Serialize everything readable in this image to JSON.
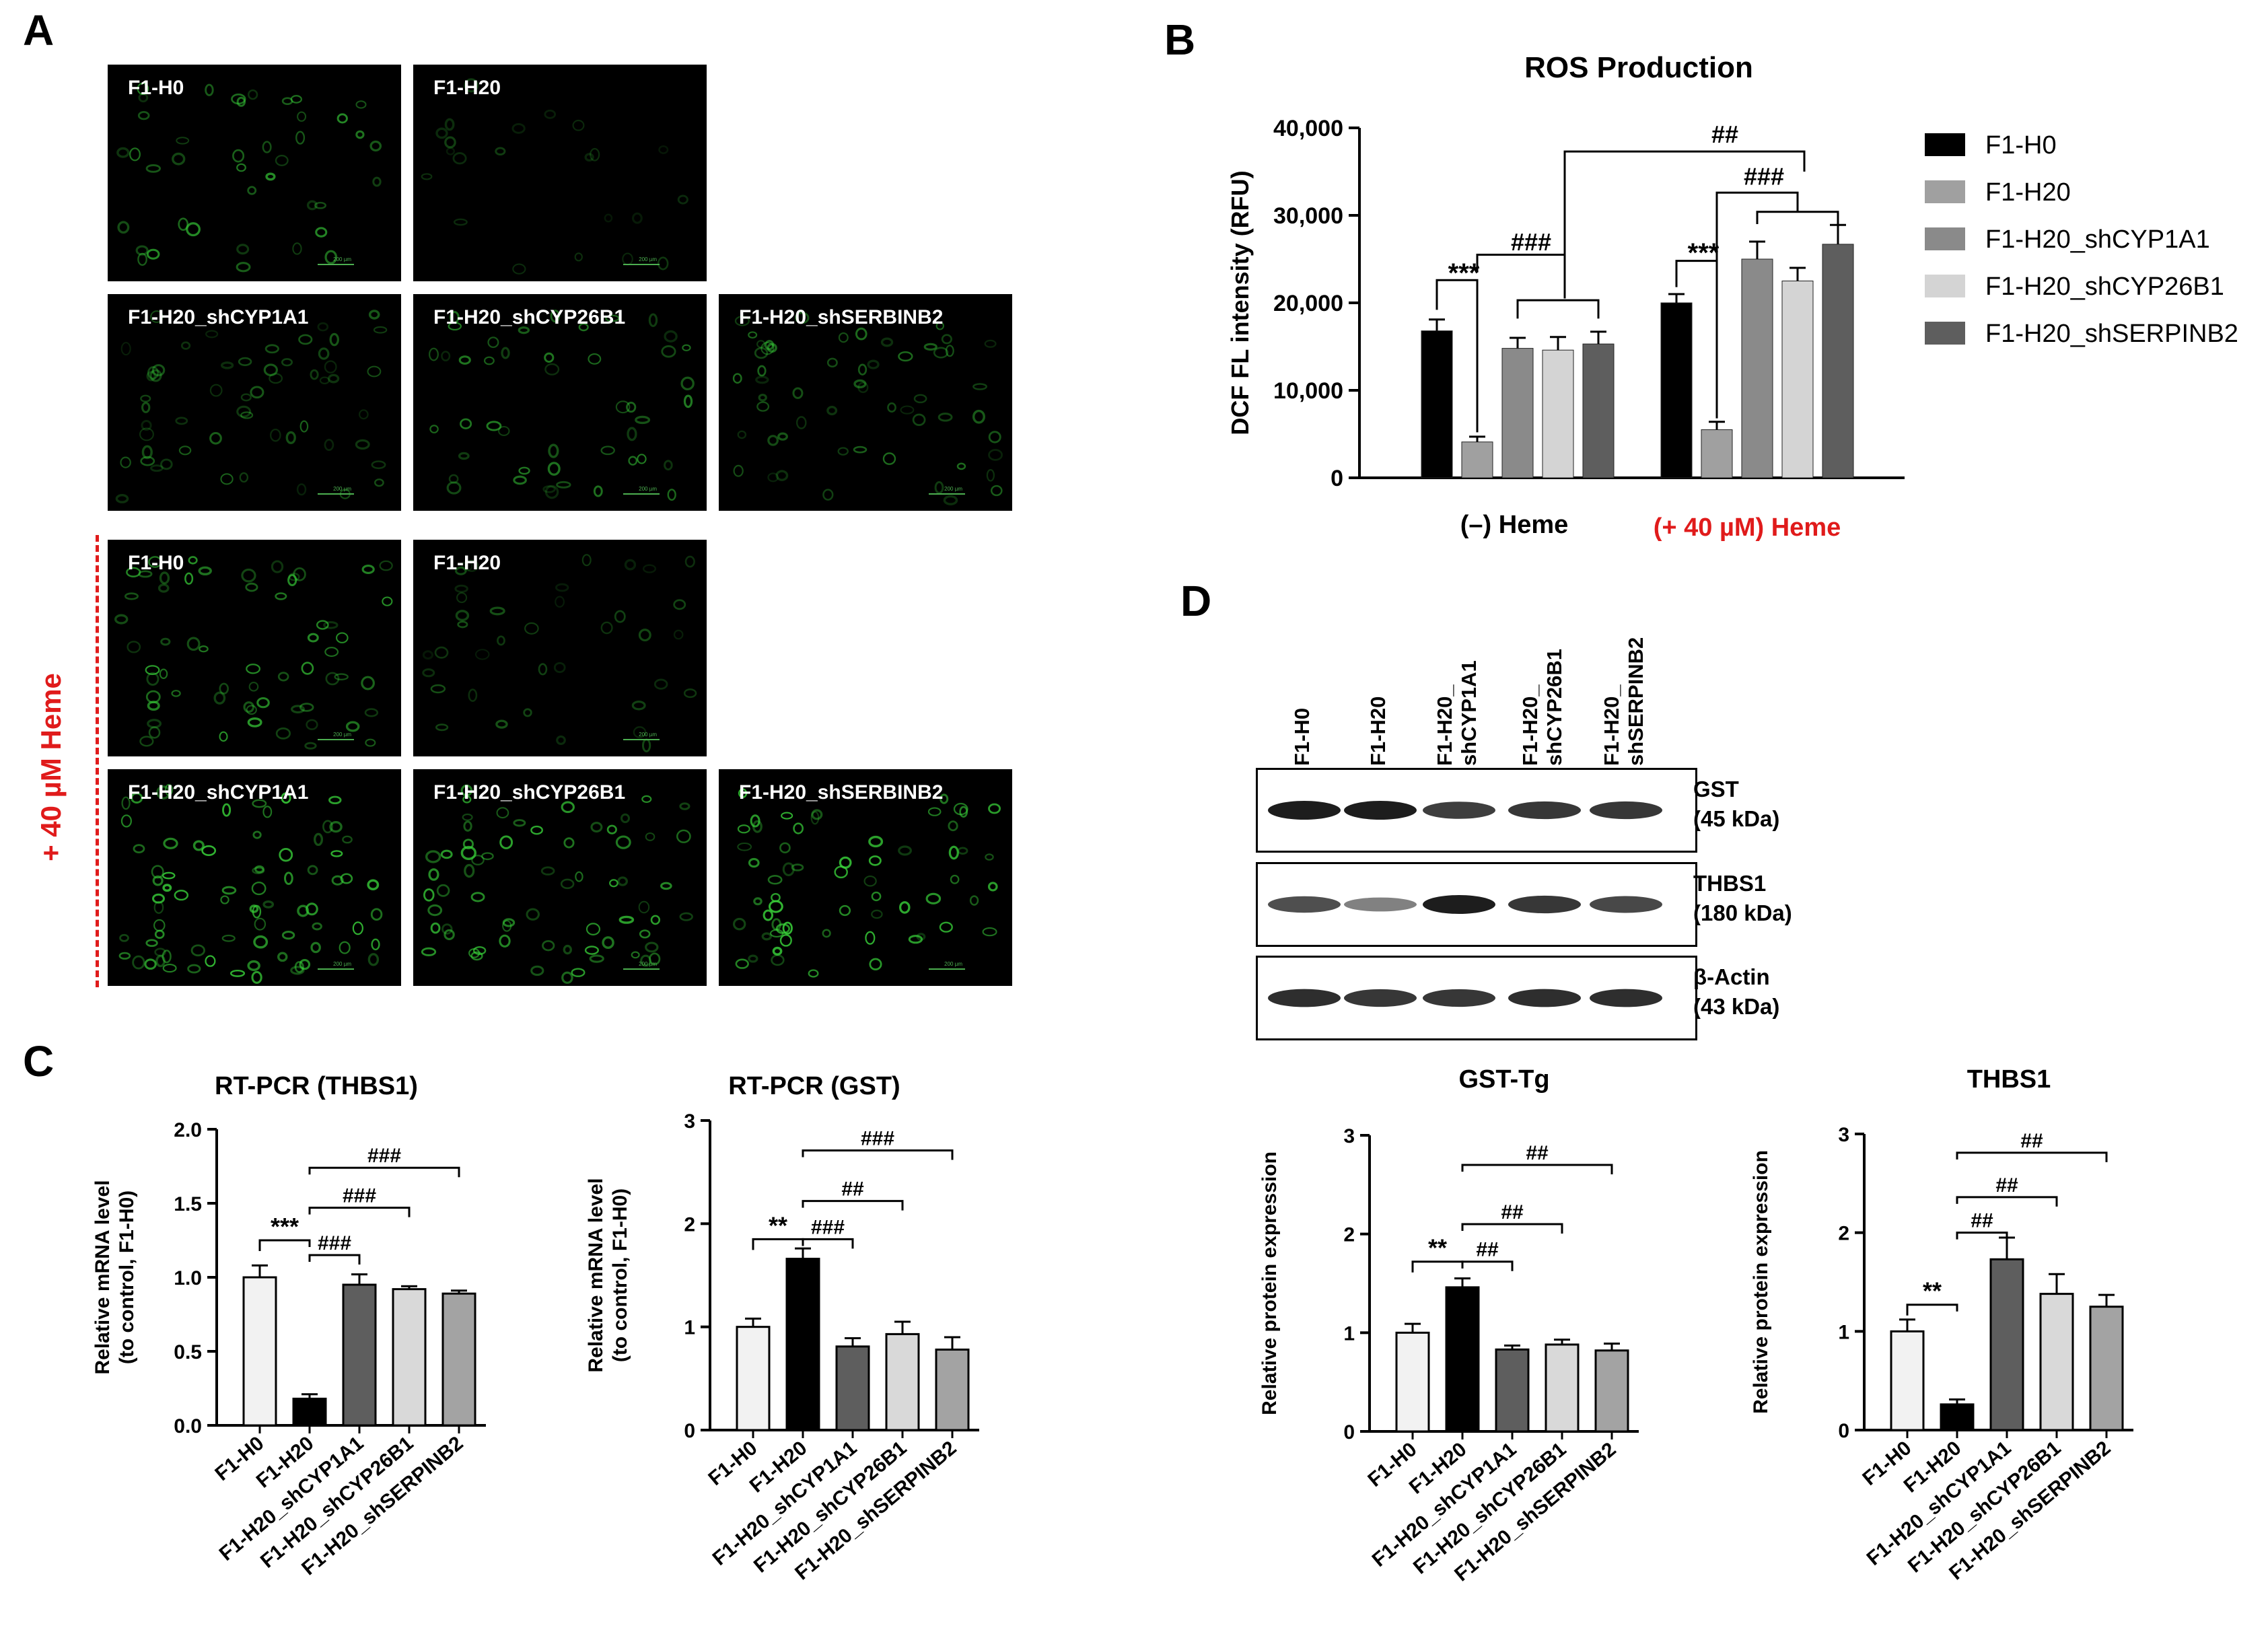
{
  "panel_letters": {
    "a": "A",
    "b": "B",
    "c": "C",
    "d": "D"
  },
  "panel_a": {
    "heme_label": "+ 40 µM Heme",
    "scale_text": "200 µm",
    "top_row1": [
      "F1-H0",
      "F1-H20"
    ],
    "top_row2": [
      "F1-H20_shCYP1A1",
      "F1-H20_shCYP26B1",
      "F1-H20_shSERBINB2"
    ],
    "bottom_row1": [
      "F1-H0",
      "F1-H20"
    ],
    "bottom_row2": [
      "F1-H20_shCYP1A1",
      "F1-H20_shCYP26B1",
      "F1-H20_shSERBINB2"
    ],
    "colors": {
      "background": "#000000",
      "cell": "#39d43a",
      "heme": "#e01b1b"
    }
  },
  "panel_b": {
    "legend": [
      "F1-H0",
      "F1-H20",
      "F1-H20_shCYP1A1",
      "F1-H20_shCYP26B1",
      "F1-H20_shSERPINB2"
    ],
    "group_label_minus": "(–) Heme",
    "group_label_plus": "(+ 40 µM) Heme",
    "sig_stars": "***",
    "sig_hash3": "###",
    "sig_hash2": "##",
    "colors": [
      "#000000",
      "#a0a0a0",
      "#8a8a8a",
      "#d4d4d4",
      "#5e5e5e"
    ]
  },
  "panel_c": {
    "sig_thbs1": {
      "stars": "***",
      "h1": "###",
      "h2": "###",
      "h3": "###"
    },
    "sig_gst": {
      "stars": "**",
      "h1": "###",
      "h2": "##",
      "h3": "###"
    }
  },
  "panel_d": {
    "lanes": [
      {
        "line1": "F1-H0",
        "line2": ""
      },
      {
        "line1": "F1-H20",
        "line2": ""
      },
      {
        "line1": "F1-H20_",
        "line2": "shCYP1A1"
      },
      {
        "line1": "F1-H20_",
        "line2": "shCYP26B1"
      },
      {
        "line1": "F1-H20_",
        "line2": "shSERPINB2"
      }
    ],
    "blots": [
      {
        "name": "GST",
        "kda": "(45 kDa)",
        "intensity": [
          1.0,
          1.0,
          0.8,
          0.85,
          0.85
        ]
      },
      {
        "name": "THBS1",
        "kda": "(180 kDa)",
        "intensity": [
          0.7,
          0.4,
          1.0,
          0.85,
          0.75
        ]
      },
      {
        "name": "β-Actin",
        "kda": "(43 kDa)",
        "intensity": [
          0.9,
          0.85,
          0.85,
          0.9,
          0.9
        ]
      }
    ],
    "sig_gst": {
      "stars": "**",
      "h1": "##",
      "h2": "##",
      "h3": "##"
    },
    "sig_thbs1": {
      "stars": "**",
      "h1": "##",
      "h2": "##",
      "h3": "##"
    }
  },
  "chart_data": [
    {
      "id": "ros",
      "type": "bar",
      "title": "ROS Production",
      "ylabel": "DCF FL intensity (RFU)",
      "xlabel": "",
      "ylim": [
        0,
        40000
      ],
      "yticks": [
        0,
        10000,
        20000,
        30000,
        40000
      ],
      "ytick_labels": [
        "0",
        "10,000",
        "20,000",
        "30,000",
        "40,000"
      ],
      "categories": [
        "(–) Heme",
        "(+ 40 µM) Heme"
      ],
      "series": [
        {
          "name": "F1-H0",
          "values": [
            16800,
            20000
          ],
          "errors": [
            1300,
            1000
          ]
        },
        {
          "name": "F1-H20",
          "values": [
            4100,
            5500
          ],
          "errors": [
            600,
            900
          ]
        },
        {
          "name": "F1-H20_shCYP1A1",
          "values": [
            14800,
            25000
          ],
          "errors": [
            1200,
            2000
          ]
        },
        {
          "name": "F1-H20_shCYP26B1",
          "values": [
            14600,
            22500
          ],
          "errors": [
            1500,
            1500
          ]
        },
        {
          "name": "F1-H20_shSERPINB2",
          "values": [
            15300,
            26700
          ],
          "errors": [
            1400,
            2200
          ]
        }
      ]
    },
    {
      "id": "rtpcr_thbs1",
      "type": "bar",
      "title": "RT-PCR (THBS1)",
      "ylabel": "Relative mRNA level",
      "ylabel2": "(to control, F1-H0)",
      "xlabel": "",
      "ylim": [
        0,
        2.0
      ],
      "yticks": [
        0,
        0.5,
        1.0,
        1.5,
        2.0
      ],
      "ytick_labels": [
        "0.0",
        "0.5",
        "1.0",
        "1.5",
        "2.0"
      ],
      "categories": [
        "F1-H0",
        "F1-H20",
        "F1-H20_shCYP1A1",
        "F1-H20_shCYP26B1",
        "F1-H20_shSERPINB2"
      ],
      "values": [
        1.0,
        0.18,
        0.95,
        0.92,
        0.89
      ],
      "errors": [
        0.08,
        0.03,
        0.07,
        0.02,
        0.02
      ],
      "colors": [
        "#f2f2f2",
        "#000000",
        "#5e5e5e",
        "#d9d9d9",
        "#a3a3a3"
      ]
    },
    {
      "id": "rtpcr_gst",
      "type": "bar",
      "title": "RT-PCR (GST)",
      "ylabel": "Relative mRNA level",
      "ylabel2": "(to control, F1-H0)",
      "xlabel": "",
      "ylim": [
        0,
        3
      ],
      "yticks": [
        0,
        1,
        2,
        3
      ],
      "ytick_labels": [
        "0",
        "1",
        "2",
        "3"
      ],
      "categories": [
        "F1-H0",
        "F1-H20",
        "F1-H20_shCYP1A1",
        "F1-H20_shCYP26B1",
        "F1-H20_shSERPINB2"
      ],
      "values": [
        1.0,
        1.66,
        0.81,
        0.93,
        0.78
      ],
      "errors": [
        0.08,
        0.1,
        0.08,
        0.12,
        0.12
      ],
      "colors": [
        "#f2f2f2",
        "#000000",
        "#5e5e5e",
        "#d9d9d9",
        "#a3a3a3"
      ]
    },
    {
      "id": "gst_tg",
      "type": "bar",
      "title": "GST-Tg",
      "ylabel": "Relative protein expression",
      "xlabel": "",
      "ylim": [
        0,
        3
      ],
      "yticks": [
        0,
        1,
        2,
        3
      ],
      "ytick_labels": [
        "0",
        "1",
        "2",
        "3"
      ],
      "categories": [
        "F1-H0",
        "F1-H20",
        "F1-H20_shCYP1A1",
        "F1-H20_shCYP26B1",
        "F1-H20_shSERPINB2"
      ],
      "values": [
        1.0,
        1.46,
        0.83,
        0.88,
        0.82
      ],
      "errors": [
        0.09,
        0.09,
        0.04,
        0.05,
        0.07
      ],
      "colors": [
        "#f2f2f2",
        "#000000",
        "#5e5e5e",
        "#d9d9d9",
        "#a3a3a3"
      ]
    },
    {
      "id": "thbs1_protein",
      "type": "bar",
      "title": "THBS1",
      "ylabel": "Relative protein expression",
      "xlabel": "",
      "ylim": [
        0,
        3
      ],
      "yticks": [
        0,
        1,
        2,
        3
      ],
      "ytick_labels": [
        "0",
        "1",
        "2",
        "3"
      ],
      "categories": [
        "F1-H0",
        "F1-H20",
        "F1-H20_shCYP1A1",
        "F1-H20_shCYP26B1",
        "F1-H20_shSERPINB2"
      ],
      "values": [
        1.0,
        0.26,
        1.73,
        1.38,
        1.25
      ],
      "errors": [
        0.12,
        0.05,
        0.22,
        0.2,
        0.12
      ],
      "colors": [
        "#f2f2f2",
        "#000000",
        "#5e5e5e",
        "#d9d9d9",
        "#a3a3a3"
      ]
    }
  ]
}
